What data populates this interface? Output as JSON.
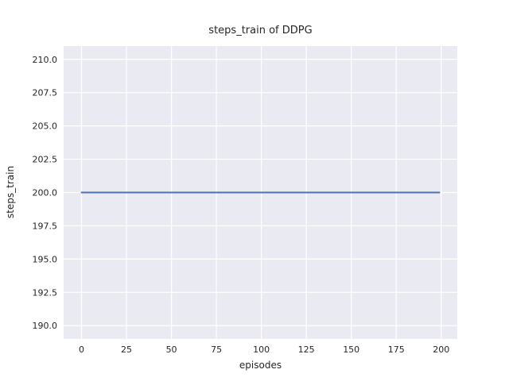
{
  "chart_data": {
    "type": "line",
    "title": "steps_train of DDPG",
    "xlabel": "episodes",
    "ylabel": "steps_train",
    "xlim": [
      -9.95,
      208.95
    ],
    "ylim": [
      189,
      211
    ],
    "xticks": [
      0,
      25,
      50,
      75,
      100,
      125,
      150,
      175,
      200
    ],
    "xtick_labels": [
      "0",
      "25",
      "50",
      "75",
      "100",
      "125",
      "150",
      "175",
      "200"
    ],
    "yticks": [
      190.0,
      192.5,
      195.0,
      197.5,
      200.0,
      202.5,
      205.0,
      207.5,
      210.0
    ],
    "ytick_labels": [
      "190.0",
      "192.5",
      "195.0",
      "197.5",
      "200.0",
      "202.5",
      "205.0",
      "207.5",
      "210.0"
    ],
    "grid": true,
    "legend": false,
    "series": [
      {
        "x": [
          0,
          199
        ],
        "y": [
          200,
          200
        ],
        "color": "#4C72B0",
        "line_width": 2
      }
    ],
    "colors": {
      "figure_bg": "#FFFFFF",
      "plot_bg": "#EAEAF2",
      "grid": "#FFFFFF",
      "text": "#262626"
    }
  }
}
